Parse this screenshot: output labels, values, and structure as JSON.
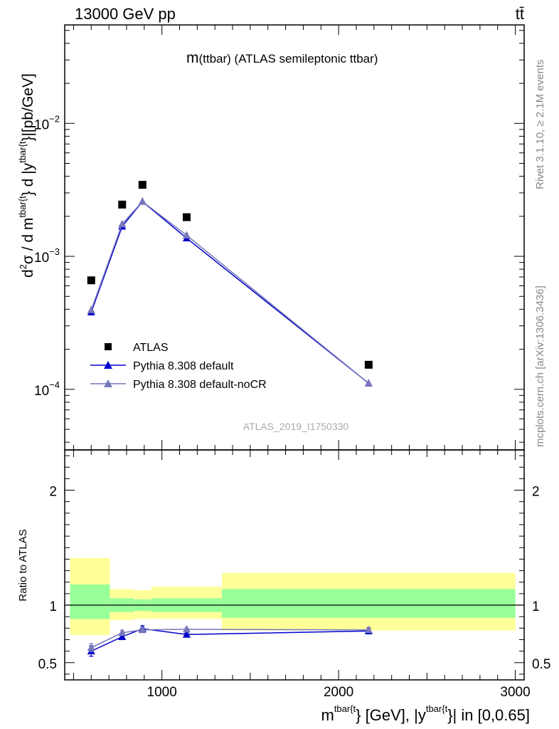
{
  "header": {
    "left": "13000 GeV pp",
    "right": "tt̄"
  },
  "side_labels": {
    "rivet": "Rivet 3.1.10, ≥ 2.1M events",
    "mcplots": "mcplots.cern.ch [arXiv:1306.3436]"
  },
  "chart_data": [
    {
      "type": "line",
      "title": "m(ttbar) (ATLAS semileptonic ttbar)",
      "title_parts": {
        "m": "m",
        "rest": "(ttbar) (ATLAS semileptonic ttbar)"
      },
      "watermark": "ATLAS_2019_I1750330",
      "ylabel_parts": {
        "d": "d",
        "two": "2",
        "sigma_slash": "σ / d m",
        "sup1": "tbar{t",
        "mid": "} d |y",
        "sup2": "tbar{t",
        "end": "}|[pb/GeV]"
      },
      "yscale": "log",
      "ylim": [
        3.5e-05,
        0.055
      ],
      "xlim": [
        450,
        3050
      ],
      "y_tick_labels": [
        {
          "value": 0.0001,
          "base": "10",
          "exp": "−4"
        },
        {
          "value": 0.001,
          "base": "10",
          "exp": "−3"
        },
        {
          "value": 0.01,
          "base": "10",
          "exp": "−2"
        }
      ],
      "legend_position": "bottom-left",
      "series": [
        {
          "name": "ATLAS",
          "marker": "square",
          "color": "#000000",
          "x": [
            600,
            775,
            890,
            1140,
            2170
          ],
          "y": [
            0.00066,
            0.00245,
            0.00345,
            0.00197,
            0.000153
          ]
        },
        {
          "name": "Pythia 8.308 default",
          "marker": "triangle",
          "color": "#0000cc",
          "x": [
            600,
            775,
            890,
            1140,
            2170
          ],
          "y": [
            0.00038,
            0.00168,
            0.00258,
            0.00137,
            0.000111
          ]
        },
        {
          "name": "Pythia 8.308 default-noCR",
          "marker": "triangle",
          "color": "#7777bb",
          "x": [
            600,
            775,
            890,
            1140,
            2170
          ],
          "y": [
            0.000395,
            0.00175,
            0.00258,
            0.00144,
            0.000111
          ]
        }
      ]
    },
    {
      "type": "line",
      "ylabel": "Ratio to ATLAS",
      "xlabel_parts": {
        "m": "m",
        "sup1": "tbar{t",
        "mid": "} [GeV], |y",
        "sup2": "tbar{t",
        "end": "}| in [0,0.65]"
      },
      "xlim": [
        450,
        3050
      ],
      "ylim": [
        0.35,
        2.35
      ],
      "x_ticks": [
        1000,
        2000,
        3000
      ],
      "x_tick_labels": [
        "1000",
        "2000",
        "3000"
      ],
      "y_ticks": [
        0.5,
        1,
        2
      ],
      "y_tick_labels": [
        "0.5",
        "1",
        "2"
      ],
      "reference_line": 1,
      "bands": [
        {
          "x_from": 480,
          "x_to": 705,
          "yellow": [
            0.74,
            1.41
          ],
          "green": [
            0.88,
            1.18
          ]
        },
        {
          "x_from": 705,
          "x_to": 840,
          "yellow": [
            0.87,
            1.14
          ],
          "green": [
            0.94,
            1.06
          ]
        },
        {
          "x_from": 840,
          "x_to": 940,
          "yellow": [
            0.88,
            1.13
          ],
          "green": [
            0.95,
            1.05
          ]
        },
        {
          "x_from": 940,
          "x_to": 1340,
          "yellow": [
            0.88,
            1.16
          ],
          "green": [
            0.94,
            1.06
          ]
        },
        {
          "x_from": 1340,
          "x_to": 3000,
          "yellow": [
            0.78,
            1.28
          ],
          "green": [
            0.89,
            1.14
          ]
        }
      ],
      "band_colors": {
        "yellow": "#ffff99",
        "green": "#99ff99"
      },
      "series": [
        {
          "name": "Pythia 8.308 default",
          "color": "#0000cc",
          "x": [
            600,
            775,
            890,
            1140,
            2170
          ],
          "y": [
            0.6,
            0.725,
            0.795,
            0.745,
            0.775
          ],
          "err": [
            0.045,
            0.025,
            0.025,
            0.012,
            0.025
          ]
        },
        {
          "name": "Pythia 8.308 default-noCR",
          "color": "#7777bb",
          "x": [
            600,
            775,
            890,
            1140,
            2170
          ],
          "y": [
            0.63,
            0.76,
            0.785,
            0.79,
            0.785
          ],
          "err": [
            0.035,
            0.02,
            0.02,
            0.01,
            0.02
          ]
        }
      ]
    }
  ]
}
